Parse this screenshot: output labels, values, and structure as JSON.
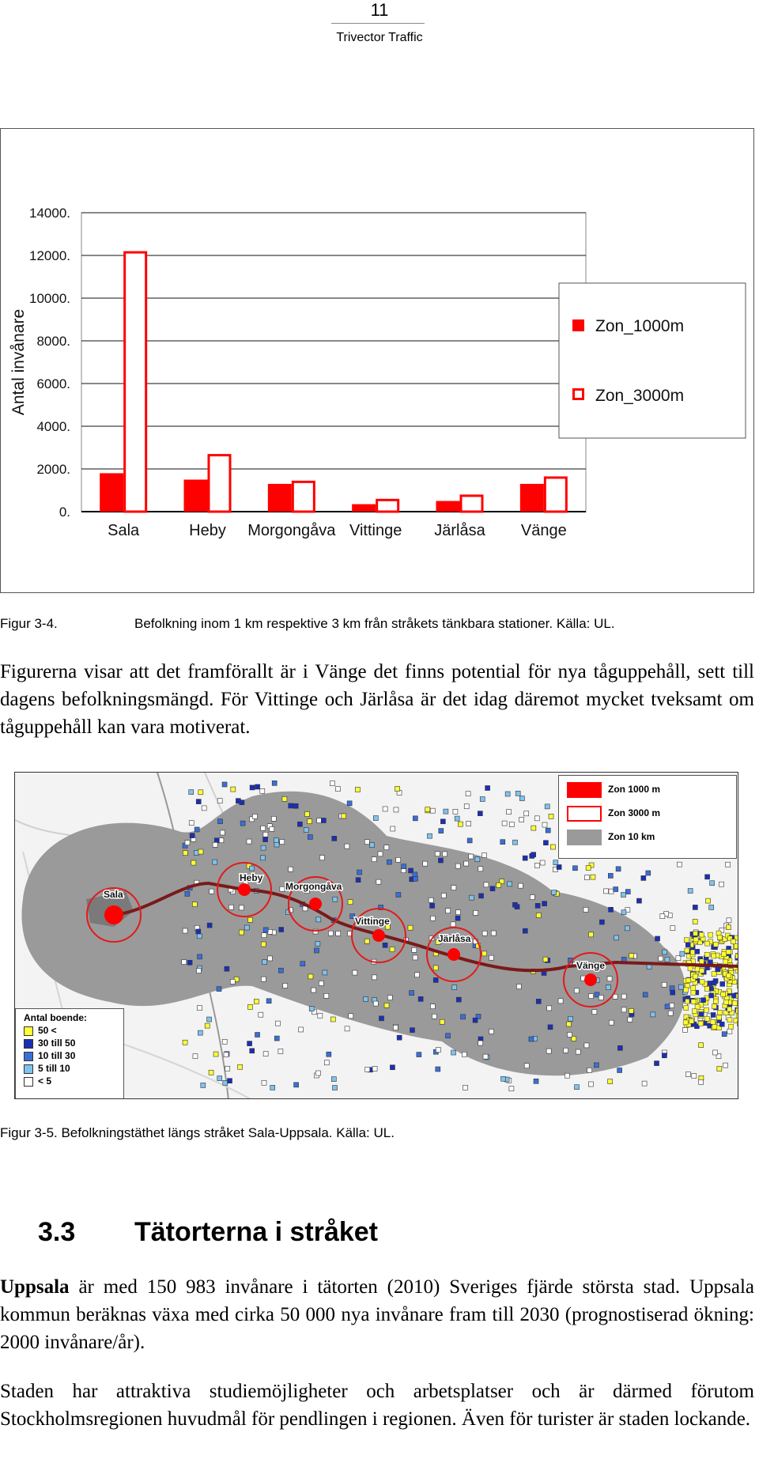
{
  "header": {
    "page_number": "11",
    "company": "Trivector Traffic"
  },
  "chart_data": {
    "type": "bar",
    "categories": [
      "Sala",
      "Heby",
      "Morgongåva",
      "Vittinge",
      "Järlåsa",
      "Vänge"
    ],
    "series": [
      {
        "name": "Zon_1000m",
        "values": [
          1800,
          1500,
          1300,
          350,
          500,
          1300
        ],
        "style": "filled",
        "color": "#ff0000"
      },
      {
        "name": "Zon_3000m",
        "values": [
          12200,
          2700,
          1450,
          600,
          800,
          1650
        ],
        "style": "outline",
        "color": "#ff0000"
      }
    ],
    "ylabel": "Antal invånare",
    "yticks": [
      "0.",
      "2000.",
      "4000.",
      "6000.",
      "8000.",
      "10000.",
      "12000.",
      "14000."
    ],
    "ylim": [
      0,
      14000
    ],
    "grid": true,
    "legend_position": "right"
  },
  "fig1_caption": {
    "label": "Figur 3-4.",
    "text": "Befolkning inom 1 km respektive 3 km från stråkets tänkbara stationer. Källa: UL."
  },
  "paragraph1": "Figurerna visar att det framförallt är i Vänge det finns potential för nya tåguppehåll, sett till dagens befolkningsmängd. För Vittinge och Järlåsa är det idag däremot mycket tveksamt om tåguppehåll kan vara motiverat.",
  "map": {
    "zone_legend": [
      "Zon 1000 m",
      "Zon 3000 m",
      "Zon 10 km"
    ],
    "density_legend_title": "Antal boende:",
    "density_legend": [
      {
        "label": "50 <",
        "color": "#ffff33"
      },
      {
        "label": "30 till 50",
        "color": "#1b2fb5"
      },
      {
        "label": "10 till 30",
        "color": "#3a6fd8"
      },
      {
        "label": "5 till 10",
        "color": "#7fc3ee"
      },
      {
        "label": "< 5",
        "color": "#ffffff"
      }
    ],
    "places": [
      "Sala",
      "Heby",
      "Morgongåva",
      "Vittinge",
      "Järlåsa",
      "Vänge"
    ]
  },
  "fig2_caption": "Figur 3-5. Befolkningstäthet längs stråket Sala-Uppsala. Källa: UL.",
  "section": {
    "number": "3.3",
    "title": "Tätorterna i stråket"
  },
  "paragraph2": {
    "bold": "Uppsala",
    "text": " är med 150 983 invånare i tätorten (2010) Sveriges fjärde största stad. Uppsala kommun beräknas växa med cirka 50 000 nya invånare fram till 2030 (prognostiserad ökning: 2000 invånare/år)."
  },
  "paragraph3": "Staden har attraktiva studiemöjligheter och arbetsplatser och är därmed förutom Stockholmsregionen huvudmål för pendlingen i regionen. Även för turister är staden lockande."
}
